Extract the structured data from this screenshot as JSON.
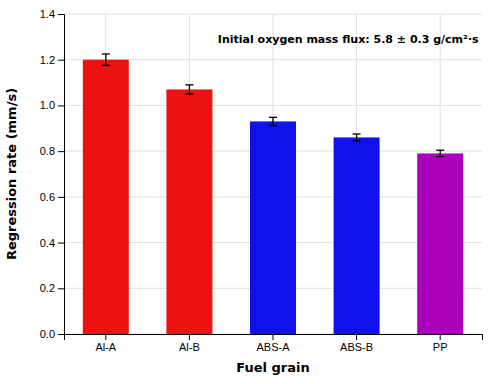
{
  "chart_data": {
    "type": "bar",
    "categories": [
      "Al-A",
      "Al-B",
      "ABS-A",
      "ABS-B",
      "PP"
    ],
    "values": [
      1.2,
      1.07,
      0.93,
      0.86,
      0.79
    ],
    "errors": [
      0.025,
      0.02,
      0.018,
      0.015,
      0.014
    ],
    "colors": [
      "#ee1111",
      "#ee1111",
      "#1111ee",
      "#1111ee",
      "#aa00bb"
    ],
    "x_label": "Fuel grain",
    "y_label": "Regression rate (mm/s)",
    "annotations": [
      "Initial oxygen mass flux: 5.8 ± 0.3 g/cm²·s"
    ],
    "ylim": [
      0.0,
      1.4
    ],
    "yticks": [
      {
        "value": 0.0,
        "label": "0.0"
      },
      0.2,
      0.4,
      0.6,
      0.8,
      {
        "value": 1.0,
        "label": "1.0"
      },
      1.2,
      1.4
    ],
    "grid": true
  }
}
